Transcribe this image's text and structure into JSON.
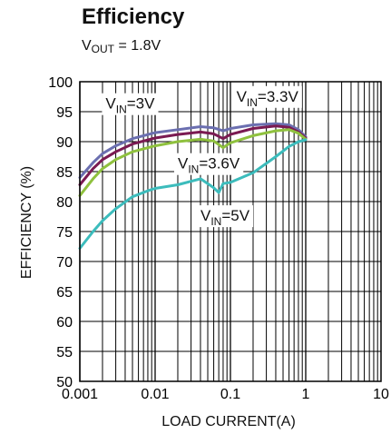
{
  "chart_data": {
    "type": "line",
    "title": "Efficiency",
    "subtitle": {
      "prefix": "V",
      "sub": "OUT",
      "suffix": " = 1.8V"
    },
    "xlabel": "LOAD CURRENT(A)",
    "ylabel": "EFFICIENCY (%)",
    "x_scale": "log",
    "xlim": [
      0.001,
      10
    ],
    "ylim": [
      50,
      100
    ],
    "x_ticks": [
      0.001,
      0.01,
      0.1,
      1,
      10
    ],
    "x_tick_labels": [
      "0.001",
      "0.01",
      "0.1",
      "1",
      "10"
    ],
    "y_ticks": [
      50,
      55,
      60,
      65,
      70,
      75,
      80,
      85,
      90,
      95,
      100
    ],
    "y_tick_labels": [
      "50",
      "55",
      "60",
      "65",
      "70",
      "75",
      "80",
      "85",
      "90",
      "95",
      "100"
    ],
    "grid": true,
    "series": [
      {
        "name": "VIN=3.3V",
        "label": {
          "pre": "V",
          "sub": "IN",
          "post": "=3.3V"
        },
        "color": "#6b6fb0",
        "points": [
          [
            0.001,
            84
          ],
          [
            0.0015,
            86.5
          ],
          [
            0.002,
            88
          ],
          [
            0.003,
            89.3
          ],
          [
            0.005,
            90.5
          ],
          [
            0.01,
            91.5
          ],
          [
            0.02,
            92
          ],
          [
            0.04,
            92.5
          ],
          [
            0.06,
            92.3
          ],
          [
            0.08,
            91.8
          ],
          [
            0.1,
            92.2
          ],
          [
            0.2,
            92.8
          ],
          [
            0.4,
            93
          ],
          [
            0.6,
            92.8
          ],
          [
            0.8,
            92
          ],
          [
            1.0,
            90.8
          ]
        ]
      },
      {
        "name": "VIN=3V",
        "label": {
          "pre": "V",
          "sub": "IN",
          "post": "=3V"
        },
        "color": "#7a1a52",
        "points": [
          [
            0.001,
            82.8
          ],
          [
            0.0015,
            85.5
          ],
          [
            0.002,
            87
          ],
          [
            0.003,
            88.3
          ],
          [
            0.005,
            89.6
          ],
          [
            0.01,
            90.6
          ],
          [
            0.02,
            91.2
          ],
          [
            0.04,
            91.6
          ],
          [
            0.06,
            91.3
          ],
          [
            0.08,
            90.5
          ],
          [
            0.1,
            91.2
          ],
          [
            0.2,
            92.2
          ],
          [
            0.4,
            92.6
          ],
          [
            0.6,
            92.4
          ],
          [
            0.8,
            91.6
          ],
          [
            1.0,
            90.6
          ]
        ]
      },
      {
        "name": "VIN=3.6V",
        "label": {
          "pre": "V",
          "sub": "IN",
          "post": "=3.6V"
        },
        "color": "#8fc13e",
        "points": [
          [
            0.001,
            81
          ],
          [
            0.0015,
            83.8
          ],
          [
            0.002,
            85.5
          ],
          [
            0.003,
            87
          ],
          [
            0.005,
            88.3
          ],
          [
            0.01,
            89.3
          ],
          [
            0.02,
            90
          ],
          [
            0.04,
            90.4
          ],
          [
            0.06,
            90.1
          ],
          [
            0.08,
            89
          ],
          [
            0.1,
            89.8
          ],
          [
            0.2,
            91
          ],
          [
            0.4,
            91.8
          ],
          [
            0.6,
            92
          ],
          [
            0.8,
            91.4
          ],
          [
            1.0,
            90.4
          ]
        ]
      },
      {
        "name": "VIN=5V",
        "label": {
          "pre": "V",
          "sub": "IN",
          "post": "=5V"
        },
        "color": "#3cbcbc",
        "points": [
          [
            0.001,
            72.2
          ],
          [
            0.0015,
            75
          ],
          [
            0.002,
            76.8
          ],
          [
            0.003,
            78.8
          ],
          [
            0.005,
            80.8
          ],
          [
            0.008,
            81.8
          ],
          [
            0.01,
            82.2
          ],
          [
            0.02,
            82.8
          ],
          [
            0.04,
            83.8
          ],
          [
            0.06,
            82.3
          ],
          [
            0.07,
            81.5
          ],
          [
            0.08,
            83
          ],
          [
            0.1,
            83.2
          ],
          [
            0.2,
            84.8
          ],
          [
            0.4,
            87.5
          ],
          [
            0.6,
            89.2
          ],
          [
            0.8,
            90
          ],
          [
            1.0,
            90.3
          ]
        ]
      }
    ],
    "annotations": [
      {
        "series": "VIN=3V",
        "x": 0.0022,
        "y": 95.5
      },
      {
        "series": "VIN=3.3V",
        "x": 0.12,
        "y": 96.7
      },
      {
        "series": "VIN=3.6V",
        "x": 0.02,
        "y": 85.5
      },
      {
        "series": "VIN=5V",
        "x": 0.04,
        "y": 76.8
      }
    ]
  }
}
